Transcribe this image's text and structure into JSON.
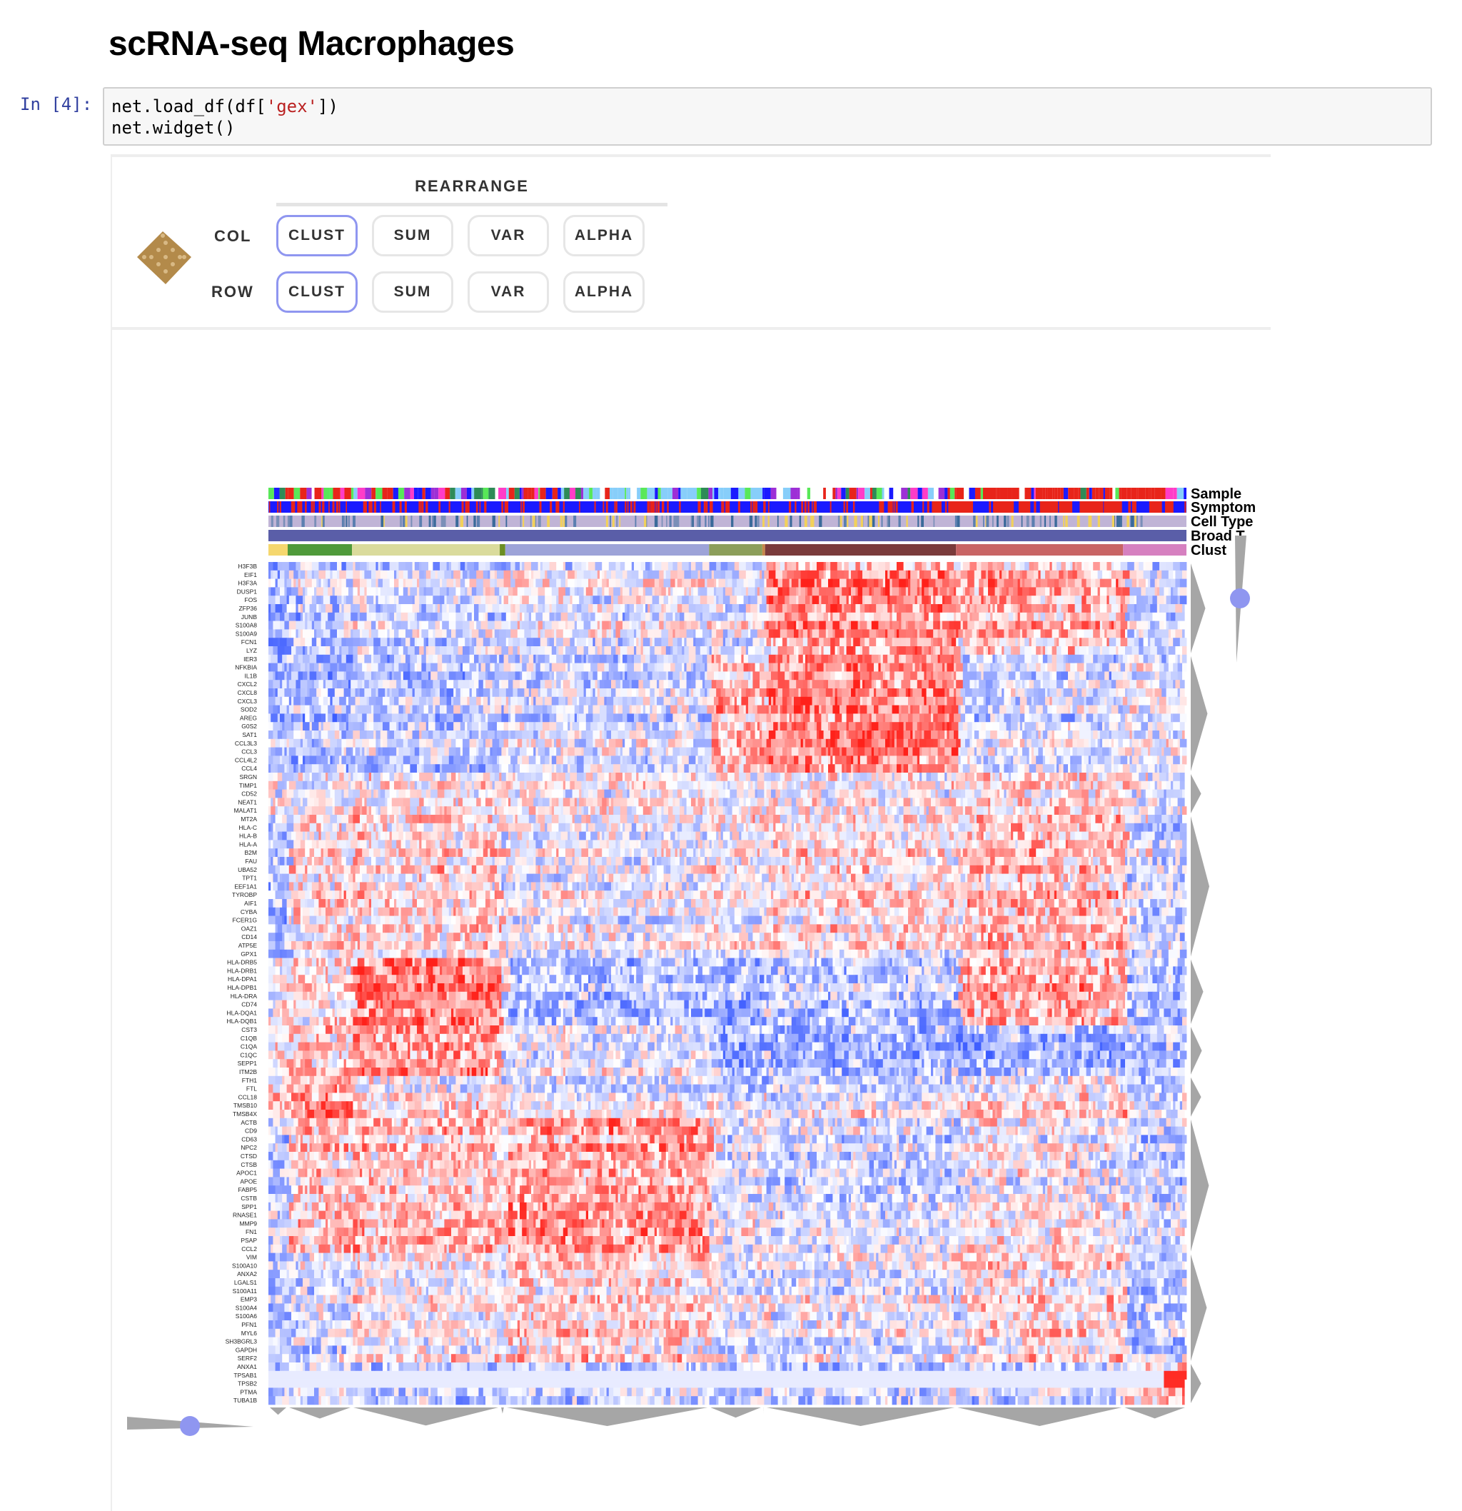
{
  "page": {
    "title": "scRNA-seq Macrophages"
  },
  "cell": {
    "prompt": "In [4]:",
    "code_line1_a": "net.load_df(df[",
    "code_line1_str": "'gex'",
    "code_line1_b": "])",
    "code_line2": "net.widget()"
  },
  "controls": {
    "heading": "REARRANGE",
    "col_label": "COL",
    "row_label": "ROW",
    "col_buttons": [
      "CLUST",
      "SUM",
      "VAR",
      "ALPHA"
    ],
    "row_buttons": [
      "CLUST",
      "SUM",
      "VAR",
      "ALPHA"
    ],
    "active_col": "CLUST",
    "active_row": "CLUST"
  },
  "colors": {
    "heat_high": "#e8241a",
    "heat_low": "#3c5cf0",
    "slider": "#8f96f0",
    "dendro": "#a6a6a6",
    "logo": "#b38a4a"
  },
  "heatmap": {
    "category_labels": [
      "Sample",
      "Symptom",
      "Cell T",
      "Broad",
      "Clust"
    ],
    "category_labels_full_partial": [
      "Sample",
      "Symptom",
      "Cell Type",
      "Broad T",
      "Clust"
    ],
    "row_labels": [
      "H3F3B",
      "EIF1",
      "H3F3A",
      "DUSP1",
      "FOS",
      "ZFP36",
      "JUNB",
      "S100A8",
      "S100A9",
      "FCN1",
      "LYZ",
      "IER3",
      "NFKBIA",
      "IL1B",
      "CXCL2",
      "CXCL8",
      "CXCL3",
      "SOD2",
      "AREG",
      "G0S2",
      "SAT1",
      "CCL3L3",
      "CCL3",
      "CCL4L2",
      "CCL4",
      "SRGN",
      "TIMP1",
      "CD52",
      "NEAT1",
      "MALAT1",
      "MT2A",
      "HLA-C",
      "HLA-B",
      "HLA-A",
      "B2M",
      "FAU",
      "UBA52",
      "TPT1",
      "EEF1A1",
      "TYROBP",
      "AIF1",
      "CYBA",
      "FCER1G",
      "OAZ1",
      "CD14",
      "ATP5E",
      "GPX1",
      "HLA-DRB5",
      "HLA-DRB1",
      "HLA-DPA1",
      "HLA-DPB1",
      "HLA-DRA",
      "CD74",
      "HLA-DQA1",
      "HLA-DQB1",
      "CST3",
      "C1QB",
      "C1QA",
      "C1QC",
      "SEPP1",
      "ITM2B",
      "FTH1",
      "FTL",
      "CCL18",
      "TMSB10",
      "TMSB4X",
      "ACTB",
      "CD9",
      "CD63",
      "NPC2",
      "CTSD",
      "CTSB",
      "APOC1",
      "APOE",
      "FABP5",
      "CSTB",
      "SPP1",
      "RNASE1",
      "MMP9",
      "FN1",
      "PSAP",
      "CCL2",
      "VIM",
      "S100A10",
      "ANXA2",
      "LGALS1",
      "S100A11",
      "EMP3",
      "S100A4",
      "S100A6",
      "PFN1",
      "MYL6",
      "SH3BGRL3",
      "GAPDH",
      "SERF2",
      "ANXA1",
      "TPSAB1",
      "TPSB2",
      "PTMA",
      "TUBA1B"
    ],
    "cluster_segments": [
      {
        "color": "#f5d76e",
        "fraction": 0.021
      },
      {
        "color": "#4f9a3a",
        "fraction": 0.07
      },
      {
        "color": "#dadb9c",
        "fraction": 0.161
      },
      {
        "color": "#6b8e23",
        "fraction": 0.006
      },
      {
        "color": "#9da3d8",
        "fraction": 0.222
      },
      {
        "color": "#8c9e5a",
        "fraction": 0.058
      },
      {
        "color": "#c8874a",
        "fraction": 0.003
      },
      {
        "color": "#7a3b3b",
        "fraction": 0.208
      },
      {
        "color": "#c86464",
        "fraction": 0.182
      },
      {
        "color": "#d680c0",
        "fraction": 0.069
      }
    ],
    "broad_type_color": "#5a5ea8",
    "cell_type_base_color": "#c0b4d6",
    "symptom_base_color": "#1a1aff",
    "symptom_accent_color": "#e8241a"
  }
}
